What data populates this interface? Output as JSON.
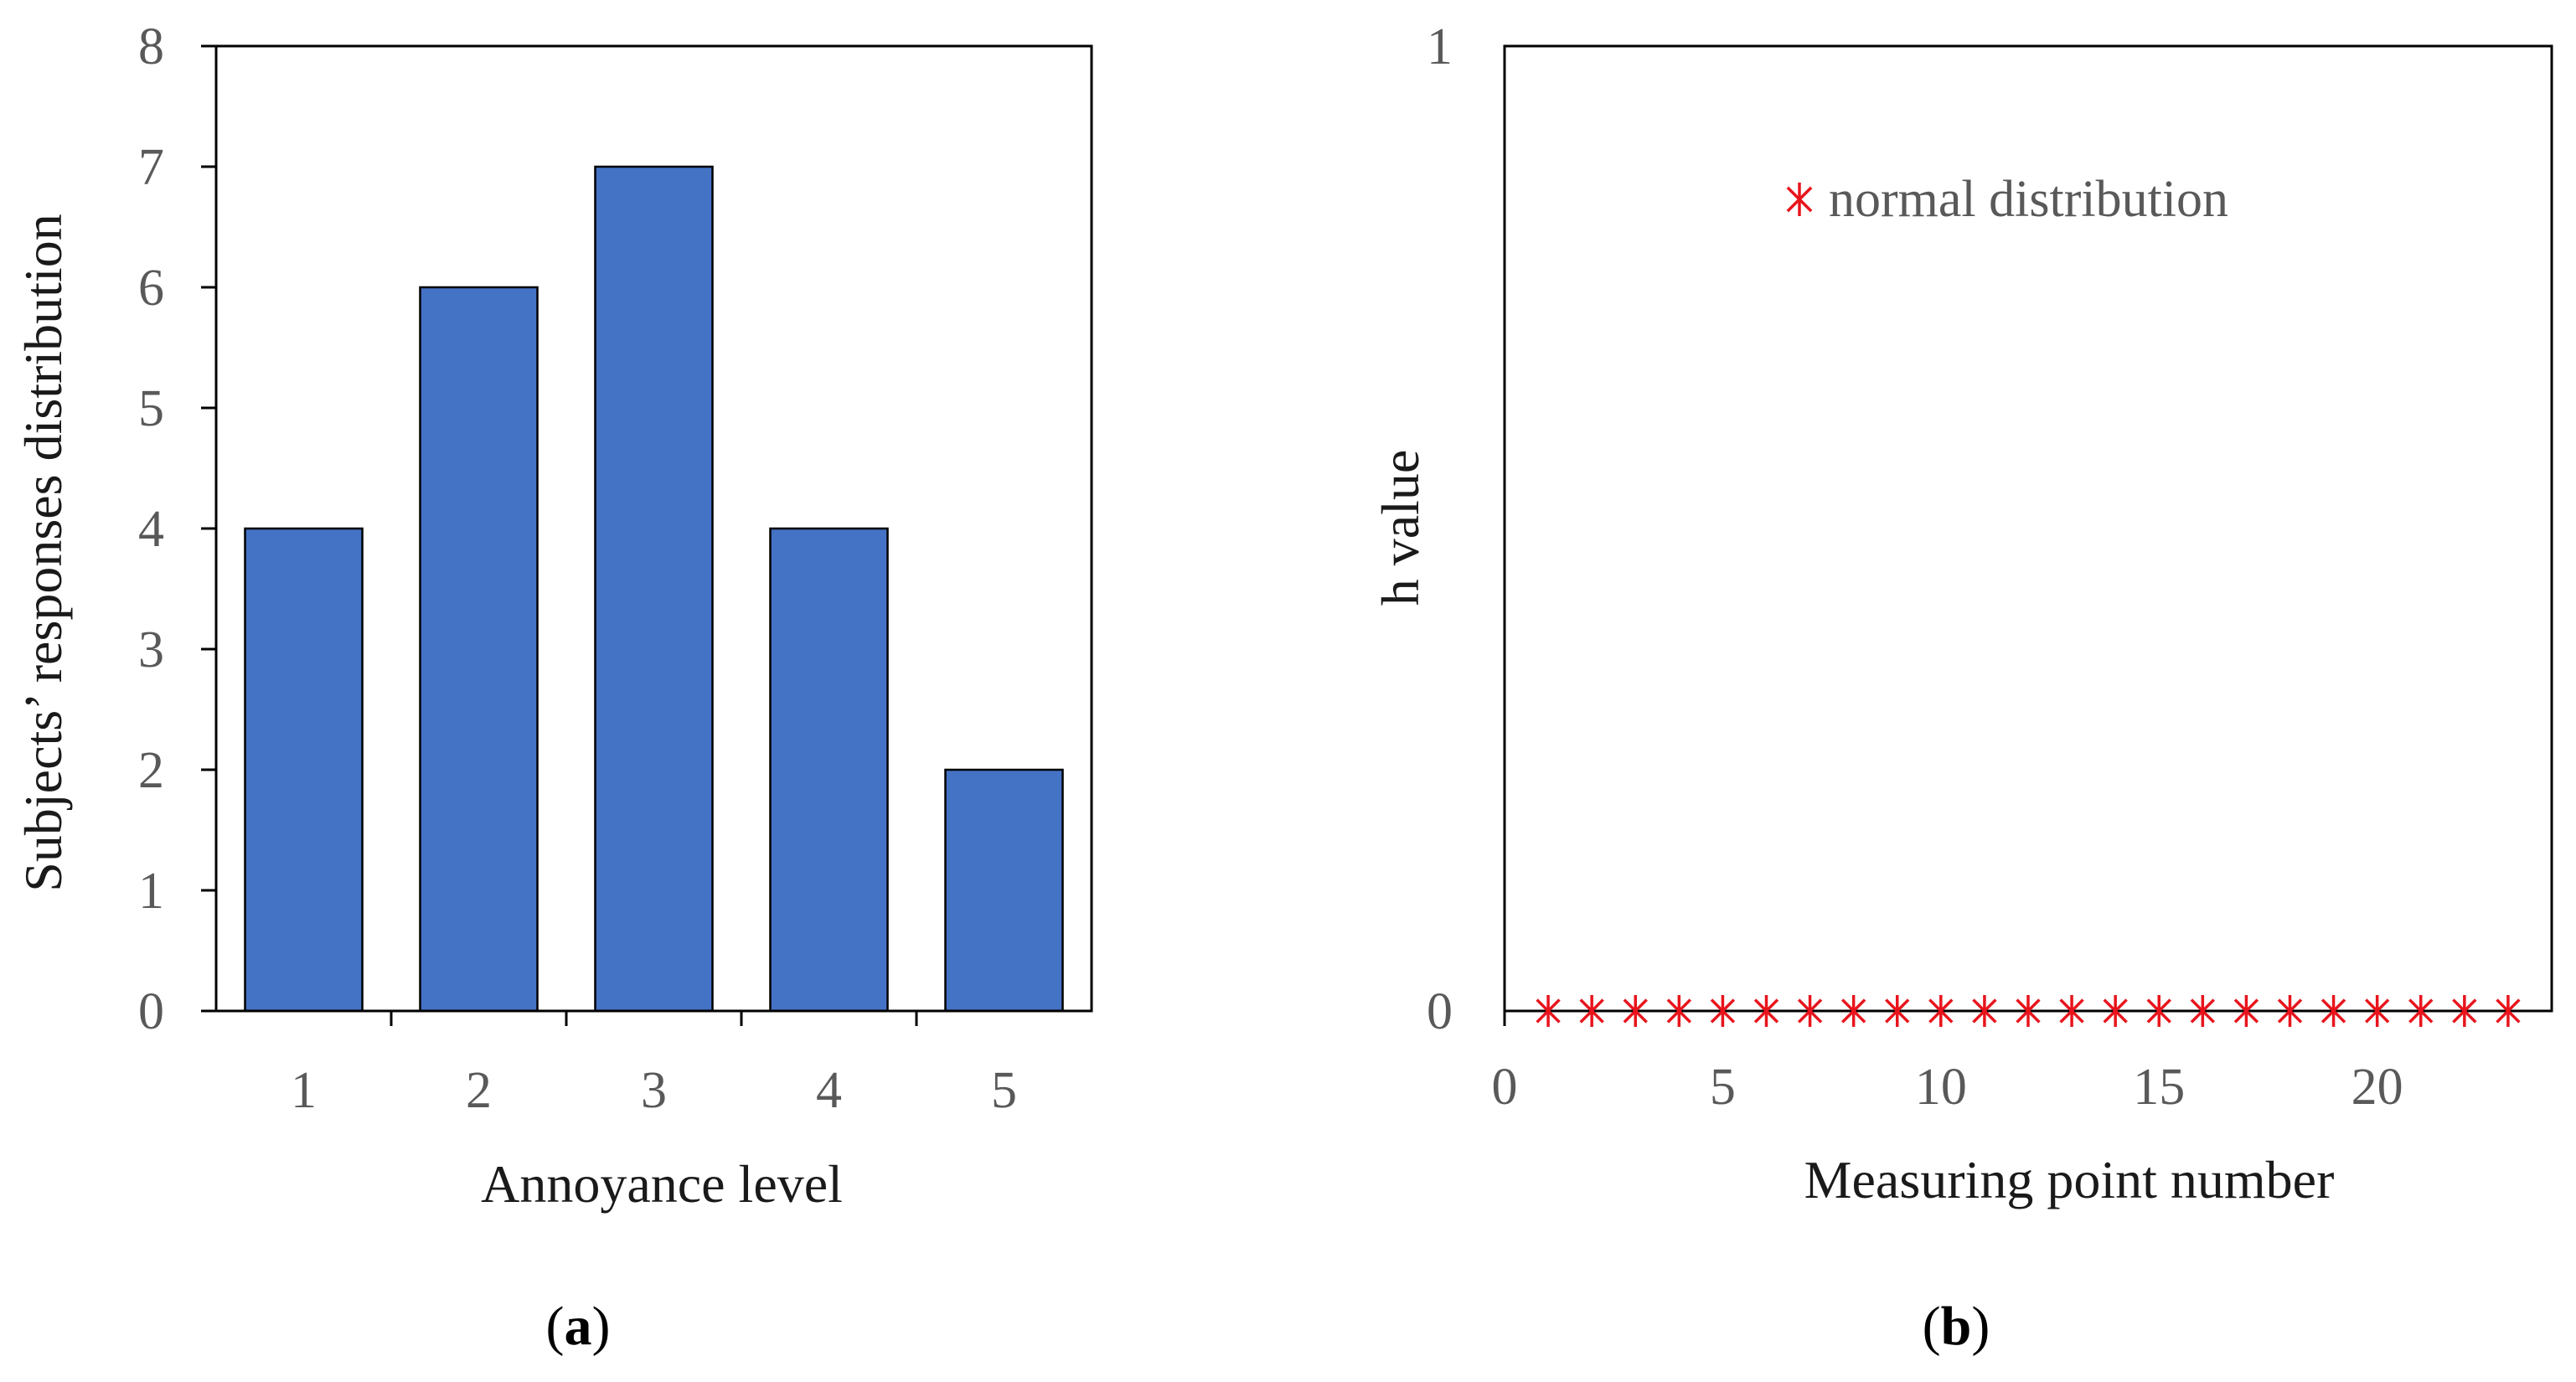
{
  "chart_data": [
    {
      "panel": "a",
      "panel_label": "(a)",
      "panel_letter": "a",
      "type": "bar",
      "categories": [
        "1",
        "2",
        "3",
        "4",
        "5"
      ],
      "values": [
        4,
        6,
        7,
        4,
        2
      ],
      "bar_color": "#4472C4",
      "xlabel": "Annoyance level",
      "ylabel": "Subjects’ responses distribution",
      "ylim": [
        0,
        8
      ],
      "yticks": [
        "0",
        "1",
        "2",
        "3",
        "4",
        "5",
        "6",
        "7",
        "8"
      ],
      "grid": false
    },
    {
      "panel": "b",
      "panel_label": "(b)",
      "panel_letter": "b",
      "type": "scatter",
      "x": [
        1,
        2,
        3,
        4,
        5,
        6,
        7,
        8,
        9,
        10,
        11,
        12,
        13,
        14,
        15,
        16,
        17,
        18,
        19,
        20,
        21,
        22,
        23
      ],
      "y": [
        0,
        0,
        0,
        0,
        0,
        0,
        0,
        0,
        0,
        0,
        0,
        0,
        0,
        0,
        0,
        0,
        0,
        0,
        0,
        0,
        0,
        0,
        0
      ],
      "marker": "asterisk",
      "marker_color": "#E8141C",
      "legend": [
        "normal distribution"
      ],
      "legend_position": "top-center",
      "xlabel": "Measuring point number",
      "ylabel": "h value",
      "xlim": [
        0,
        24
      ],
      "ylim": [
        0,
        1
      ],
      "xticks": [
        "0",
        "5",
        "10",
        "15",
        "20"
      ],
      "yticks": [
        "0",
        "1"
      ],
      "grid": false
    }
  ]
}
